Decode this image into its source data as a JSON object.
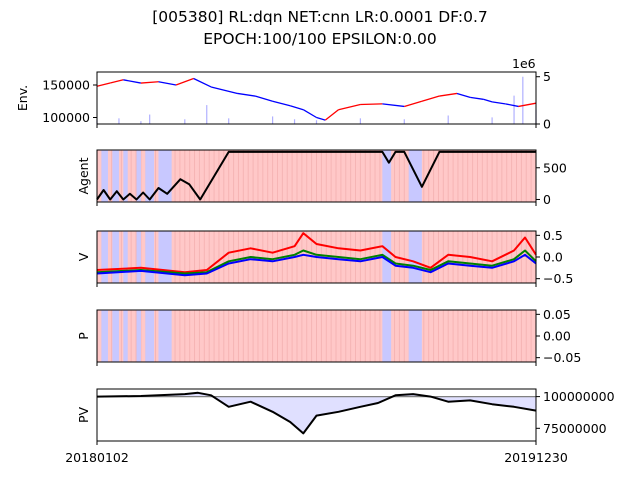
{
  "figure": {
    "title_line1": "[005380] RL:dqn NET:cnn LR:0.0001 DF:0.7",
    "title_line2": "EPOCH:100/100 EPSILON:0.00",
    "x_start_label": "20180102",
    "x_end_label": "20191230",
    "colors": {
      "price_up": "#ff0000",
      "price_down": "#0000ff",
      "volume": "#b0b0ff",
      "hold_band": "#ffc8c8",
      "buy_band": "#c8c8ff",
      "agent_line": "#000000",
      "v_series": [
        "#ff0000",
        "#008000",
        "#0000ff"
      ],
      "pv_loss_fill": "#e0e0ff",
      "pv_gain_fill": "#ffd0d0"
    }
  },
  "chart_data": [
    {
      "id": "env",
      "type": "line",
      "ylabel": "Env.",
      "x_range": [
        "20180102",
        "20191230"
      ],
      "y_ticks": [
        100000,
        150000
      ],
      "y_tick_labels": [
        "100000",
        "150000"
      ],
      "ylim": [
        90000,
        170000
      ],
      "right_axis": {
        "ticks": [
          0,
          5
        ],
        "tick_labels": [
          "0",
          "5"
        ],
        "offset_label": "1e6",
        "ylim": [
          0,
          5.5
        ],
        "series": "volume (bars)"
      },
      "price_points": [
        [
          0,
          148000
        ],
        [
          0.03,
          153000
        ],
        [
          0.06,
          158000
        ],
        [
          0.1,
          153000
        ],
        [
          0.14,
          155000
        ],
        [
          0.18,
          150000
        ],
        [
          0.22,
          160000
        ],
        [
          0.26,
          147000
        ],
        [
          0.32,
          137000
        ],
        [
          0.36,
          133000
        ],
        [
          0.4,
          125000
        ],
        [
          0.44,
          118000
        ],
        [
          0.47,
          112000
        ],
        [
          0.5,
          100000
        ],
        [
          0.52,
          96000
        ],
        [
          0.55,
          112000
        ],
        [
          0.6,
          120000
        ],
        [
          0.65,
          121000
        ],
        [
          0.7,
          117000
        ],
        [
          0.74,
          125000
        ],
        [
          0.78,
          133000
        ],
        [
          0.82,
          137000
        ],
        [
          0.85,
          131000
        ],
        [
          0.88,
          128000
        ],
        [
          0.9,
          124000
        ],
        [
          0.93,
          121000
        ],
        [
          0.96,
          117000
        ],
        [
          1,
          122000
        ]
      ],
      "volume_points": [
        [
          0,
          0.4
        ],
        [
          0.05,
          0.6
        ],
        [
          0.1,
          0.3
        ],
        [
          0.12,
          1.0
        ],
        [
          0.2,
          0.5
        ],
        [
          0.25,
          2.0
        ],
        [
          0.3,
          0.6
        ],
        [
          0.4,
          0.8
        ],
        [
          0.45,
          0.5
        ],
        [
          0.5,
          0.4
        ],
        [
          0.6,
          0.6
        ],
        [
          0.7,
          0.5
        ],
        [
          0.8,
          0.9
        ],
        [
          0.9,
          0.7
        ],
        [
          0.95,
          3.0
        ],
        [
          0.97,
          5.0
        ],
        [
          1,
          1.5
        ]
      ]
    },
    {
      "id": "agent",
      "type": "line",
      "ylabel": "Agent",
      "y_ticks": [
        0,
        500
      ],
      "y_tick_labels": [
        "0",
        "500"
      ],
      "ylim": [
        -40,
        780
      ],
      "points": [
        [
          0,
          0
        ],
        [
          0.015,
          150
        ],
        [
          0.03,
          0
        ],
        [
          0.045,
          130
        ],
        [
          0.06,
          0
        ],
        [
          0.075,
          90
        ],
        [
          0.09,
          0
        ],
        [
          0.105,
          110
        ],
        [
          0.12,
          0
        ],
        [
          0.14,
          180
        ],
        [
          0.16,
          90
        ],
        [
          0.19,
          320
        ],
        [
          0.21,
          240
        ],
        [
          0.235,
          0
        ],
        [
          0.3,
          750
        ],
        [
          0.65,
          750
        ],
        [
          0.665,
          580
        ],
        [
          0.68,
          750
        ],
        [
          0.7,
          750
        ],
        [
          0.74,
          200
        ],
        [
          0.78,
          750
        ],
        [
          1,
          750
        ]
      ]
    },
    {
      "id": "v",
      "type": "line",
      "ylabel": "V",
      "y_ticks": [
        -0.5,
        0.0,
        0.5
      ],
      "y_tick_labels": [
        "−0.5",
        "0.0",
        "0.5"
      ],
      "ylim": [
        -0.6,
        0.6
      ],
      "series": [
        {
          "points": [
            [
              0,
              -0.3
            ],
            [
              0.1,
              -0.25
            ],
            [
              0.2,
              -0.35
            ],
            [
              0.25,
              -0.3
            ],
            [
              0.3,
              0.1
            ],
            [
              0.35,
              0.2
            ],
            [
              0.4,
              0.1
            ],
            [
              0.45,
              0.25
            ],
            [
              0.47,
              0.55
            ],
            [
              0.5,
              0.3
            ],
            [
              0.55,
              0.2
            ],
            [
              0.6,
              0.15
            ],
            [
              0.65,
              0.25
            ],
            [
              0.68,
              0.0
            ],
            [
              0.72,
              -0.1
            ],
            [
              0.76,
              -0.25
            ],
            [
              0.8,
              0.05
            ],
            [
              0.85,
              0.0
            ],
            [
              0.9,
              -0.1
            ],
            [
              0.95,
              0.15
            ],
            [
              0.975,
              0.45
            ],
            [
              1,
              0.05
            ]
          ]
        },
        {
          "points": [
            [
              0,
              -0.35
            ],
            [
              0.1,
              -0.3
            ],
            [
              0.2,
              -0.38
            ],
            [
              0.25,
              -0.35
            ],
            [
              0.3,
              -0.1
            ],
            [
              0.35,
              0.0
            ],
            [
              0.4,
              -0.05
            ],
            [
              0.45,
              0.05
            ],
            [
              0.47,
              0.15
            ],
            [
              0.5,
              0.05
            ],
            [
              0.55,
              0.0
            ],
            [
              0.6,
              -0.05
            ],
            [
              0.65,
              0.05
            ],
            [
              0.68,
              -0.15
            ],
            [
              0.72,
              -0.2
            ],
            [
              0.76,
              -0.3
            ],
            [
              0.8,
              -0.1
            ],
            [
              0.85,
              -0.15
            ],
            [
              0.9,
              -0.2
            ],
            [
              0.95,
              -0.05
            ],
            [
              0.975,
              0.15
            ],
            [
              1,
              -0.1
            ]
          ]
        },
        {
          "points": [
            [
              0,
              -0.38
            ],
            [
              0.1,
              -0.32
            ],
            [
              0.2,
              -0.42
            ],
            [
              0.25,
              -0.38
            ],
            [
              0.3,
              -0.15
            ],
            [
              0.35,
              -0.05
            ],
            [
              0.4,
              -0.1
            ],
            [
              0.45,
              0.0
            ],
            [
              0.47,
              0.05
            ],
            [
              0.5,
              0.0
            ],
            [
              0.55,
              -0.05
            ],
            [
              0.6,
              -0.1
            ],
            [
              0.65,
              0.0
            ],
            [
              0.68,
              -0.2
            ],
            [
              0.72,
              -0.25
            ],
            [
              0.76,
              -0.35
            ],
            [
              0.8,
              -0.15
            ],
            [
              0.85,
              -0.2
            ],
            [
              0.9,
              -0.25
            ],
            [
              0.95,
              -0.1
            ],
            [
              0.975,
              0.05
            ],
            [
              1,
              -0.15
            ]
          ]
        }
      ]
    },
    {
      "id": "p",
      "type": "line",
      "ylabel": "P",
      "y_ticks": [
        -0.05,
        0.0,
        0.05
      ],
      "y_tick_labels": [
        "−0.05",
        "0.00",
        "0.05"
      ],
      "ylim": [
        -0.06,
        0.06
      ]
    },
    {
      "id": "pv",
      "type": "area",
      "ylabel": "PV",
      "y_ticks": [
        75000000,
        100000000
      ],
      "y_tick_labels": [
        "75000000",
        "100000000"
      ],
      "ylim": [
        65000000,
        106000000
      ],
      "baseline": 100000000,
      "points": [
        [
          0,
          100000000
        ],
        [
          0.1,
          100500000
        ],
        [
          0.2,
          102000000
        ],
        [
          0.23,
          103000000
        ],
        [
          0.26,
          101000000
        ],
        [
          0.3,
          92000000
        ],
        [
          0.35,
          96000000
        ],
        [
          0.4,
          88000000
        ],
        [
          0.44,
          80000000
        ],
        [
          0.47,
          71000000
        ],
        [
          0.5,
          85000000
        ],
        [
          0.55,
          88000000
        ],
        [
          0.6,
          92000000
        ],
        [
          0.64,
          95000000
        ],
        [
          0.68,
          101000000
        ],
        [
          0.72,
          102000000
        ],
        [
          0.76,
          100000000
        ],
        [
          0.8,
          96000000
        ],
        [
          0.85,
          97000000
        ],
        [
          0.9,
          94000000
        ],
        [
          0.95,
          92000000
        ],
        [
          1,
          89000000
        ]
      ]
    }
  ],
  "action_bands": {
    "blue_spans": [
      [
        0.01,
        0.025
      ],
      [
        0.035,
        0.05
      ],
      [
        0.06,
        0.07
      ],
      [
        0.09,
        0.1
      ],
      [
        0.11,
        0.13
      ],
      [
        0.14,
        0.17
      ],
      [
        0.65,
        0.67
      ],
      [
        0.71,
        0.74
      ]
    ]
  }
}
